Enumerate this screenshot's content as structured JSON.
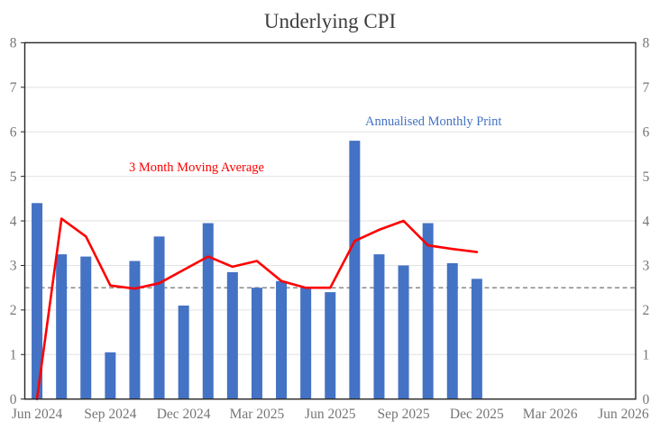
{
  "title": "Underlying CPI",
  "colors": {
    "bar": "#4472C4",
    "line": "#FF0000",
    "reference_line": "#7F7F7F",
    "gridline": "#E2E2E2",
    "plot_border": "#262626",
    "axis_text": "#767676",
    "title_text": "#3d3d3d",
    "annotation_bar_text": "#4472C4",
    "annotation_line_text": "#FF0000"
  },
  "chart_data": {
    "type": "combo",
    "title": "Underlying CPI",
    "grid": true,
    "legend_position": "inline-annotations",
    "x_axis": {
      "tick_labels": [
        "Jun 2024",
        "Sep 2024",
        "Dec 2024",
        "Mar 2025",
        "Jun 2025",
        "Sep 2025",
        "Dec 2025",
        "Mar 2026",
        "Jun 2026"
      ],
      "tick_slot_indices": [
        0,
        3,
        6,
        9,
        12,
        15,
        18,
        21,
        24
      ],
      "total_month_slots": 25,
      "first_month": "Jun 2024",
      "last_month": "Jun 2026"
    },
    "y_axis": {
      "min": 0,
      "max": 8,
      "step": 1,
      "tick_labels": [
        "0",
        "1",
        "2",
        "3",
        "4",
        "5",
        "6",
        "7",
        "8"
      ],
      "sides": "both"
    },
    "reference_line": {
      "value": 2.5,
      "style": "dashed",
      "color": "#7F7F7F"
    },
    "categories": [
      "Jun 2024",
      "Jul 2024",
      "Aug 2024",
      "Sep 2024",
      "Oct 2024",
      "Nov 2024",
      "Dec 2024",
      "Jan 2025",
      "Feb 2025",
      "Mar 2025",
      "Apr 2025",
      "May 2025",
      "Jun 2025",
      "Jul 2025",
      "Aug 2025",
      "Sep 2025",
      "Oct 2025",
      "Nov 2025",
      "Dec 2025"
    ],
    "series": [
      {
        "name": "Annualised Monthly Print",
        "type": "bar",
        "color": "#4472C4",
        "values": [
          4.4,
          3.25,
          3.2,
          1.05,
          3.1,
          3.65,
          2.1,
          3.95,
          2.85,
          2.5,
          2.65,
          2.5,
          2.4,
          5.8,
          3.25,
          3.0,
          3.95,
          3.05,
          2.7
        ]
      },
      {
        "name": "3 Month Moving Average",
        "type": "line",
        "color": "#FF0000",
        "values": [
          0,
          4.05,
          3.65,
          2.55,
          2.48,
          2.6,
          2.9,
          3.2,
          2.97,
          3.1,
          2.65,
          2.5,
          2.5,
          3.55,
          3.8,
          4.0,
          3.45,
          3.37,
          3.3
        ]
      }
    ],
    "annotations": [
      {
        "text": "3 Month Moving Average",
        "color": "#FF0000"
      },
      {
        "text": "Annualised Monthly Print",
        "color": "#4472C4"
      }
    ]
  }
}
